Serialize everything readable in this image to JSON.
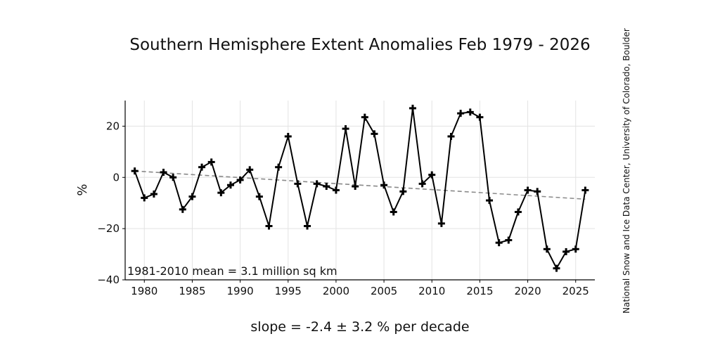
{
  "chart_data": {
    "type": "line",
    "title": "Southern Hemisphere Extent Anomalies Feb 1979 - 2026",
    "ylabel": "%",
    "xlabel": "",
    "xlim": [
      1978,
      2027
    ],
    "ylim": [
      -40,
      30
    ],
    "x_ticks": [
      1980,
      1985,
      1990,
      1995,
      2000,
      2005,
      2010,
      2015,
      2020,
      2025
    ],
    "y_ticks": [
      -40,
      -20,
      0,
      20
    ],
    "grid": true,
    "annotation": "1981-2010 mean = 3.1 million sq km",
    "slope_text": "slope = -2.4 ± 3.2 % per decade",
    "credit": "National Snow and Ice Data Center, University of Colorado, Boulder",
    "series": [
      {
        "x": [
          1979,
          1980,
          1981,
          1982,
          1983,
          1984,
          1985,
          1986,
          1987,
          1988,
          1989,
          1990,
          1991,
          1992,
          1993,
          1994,
          1995,
          1996,
          1997,
          1998,
          1999,
          2000,
          2001,
          2002,
          2003,
          2004,
          2005,
          2006,
          2007,
          2008,
          2009,
          2010,
          2011,
          2012,
          2013,
          2014,
          2015,
          2016,
          2017,
          2018,
          2019,
          2020,
          2021,
          2022,
          2023,
          2024,
          2025,
          2026
        ],
        "values": [
          2.5,
          -8,
          -6.5,
          2,
          0,
          -12.5,
          -7.5,
          4,
          6,
          -6,
          -3,
          -1,
          3,
          -7.5,
          -19,
          4,
          16,
          -2.5,
          -19,
          -2.5,
          -3.5,
          -5,
          19,
          -3.5,
          23.5,
          17,
          -3,
          -13.5,
          -5.5,
          27,
          -2.5,
          1,
          -18,
          16,
          25,
          25.5,
          23.5,
          -9,
          -25.5,
          -24.5,
          -13.5,
          -5,
          -5.5,
          -28,
          -35.5,
          -29,
          -28,
          -5
        ],
        "color": "#000000"
      }
    ],
    "trend": {
      "start": [
        1979,
        2.5
      ],
      "end": [
        2026,
        -8.5
      ],
      "color": "#8a8a8a"
    }
  }
}
